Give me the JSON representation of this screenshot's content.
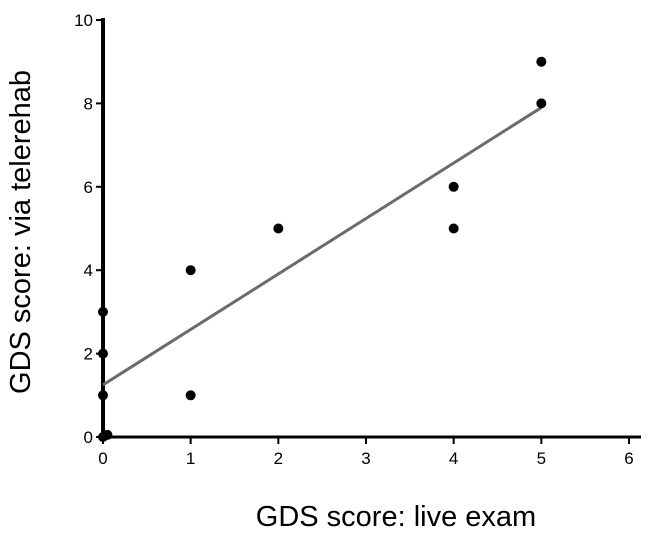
{
  "chart_data": {
    "type": "scatter",
    "title": "",
    "xlabel": "GDS score: live exam",
    "ylabel": "GDS score: via telerehab",
    "xlim": [
      0,
      6
    ],
    "ylim": [
      0,
      10
    ],
    "x_ticks": [
      0,
      1,
      2,
      3,
      4,
      5,
      6
    ],
    "y_ticks": [
      0,
      2,
      4,
      6,
      8,
      10
    ],
    "grid": false,
    "points": [
      {
        "x": 0,
        "y": 0
      },
      {
        "x": 0.05,
        "y": 0.05
      },
      {
        "x": 0,
        "y": 1
      },
      {
        "x": 0,
        "y": 2
      },
      {
        "x": 0,
        "y": 3
      },
      {
        "x": 1,
        "y": 1
      },
      {
        "x": 1,
        "y": 4
      },
      {
        "x": 2,
        "y": 5
      },
      {
        "x": 4,
        "y": 5
      },
      {
        "x": 4,
        "y": 6
      },
      {
        "x": 5,
        "y": 8
      },
      {
        "x": 5,
        "y": 9
      }
    ],
    "trendline": {
      "x": [
        0,
        5
      ],
      "y": [
        1.25,
        7.9
      ],
      "color": "#6b6b6b"
    },
    "marker_color": "#000000"
  }
}
